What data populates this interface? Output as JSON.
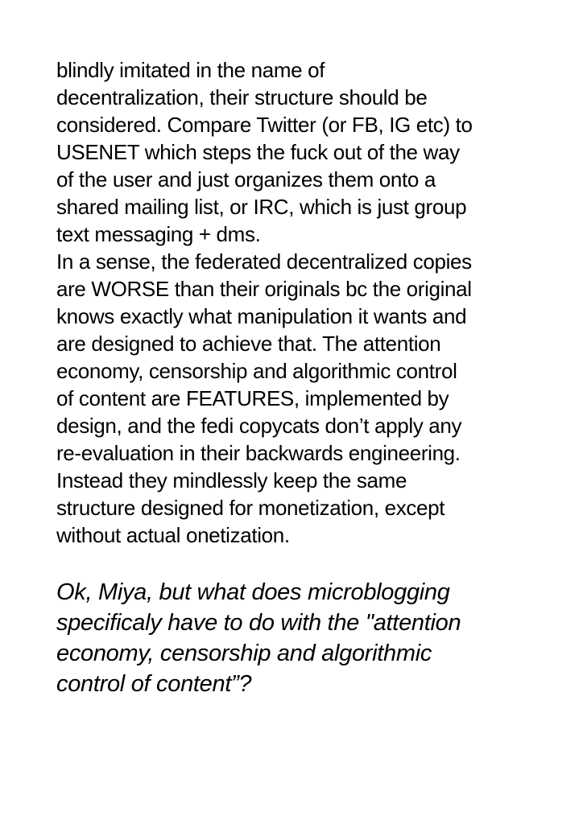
{
  "body_lines": [
    "blindly imitated in the name of",
    "decentralization, their structure should be",
    "considered. Compare Twitter (or FB, IG etc) to",
    "USENET which steps the fuck out of the way",
    "of the user and just organizes them onto a",
    "shared mailing list, or IRC, which is just group",
    "text messaging + dms.",
    "In a sense, the federated decentralized copies",
    "are WORSE than their originals bc the original",
    "knows exactly what manipulation it wants and",
    "are designed to achieve that. The attention",
    "economy, censorship and algorithmic control",
    "of content are FEATURES, implemented by",
    "design, and the fedi copycats don’t apply any",
    "re-evaluation in their backwards engineering.",
    "Instead they mindlessly keep the same",
    "structure designed for monetization, except",
    "without actual onetization."
  ],
  "question_lines": [
    "Ok, Miya, but what does microblogging",
    "specificaly have to do with the \"attention",
    "economy, censorship and algorithmic",
    "control of content”?"
  ]
}
